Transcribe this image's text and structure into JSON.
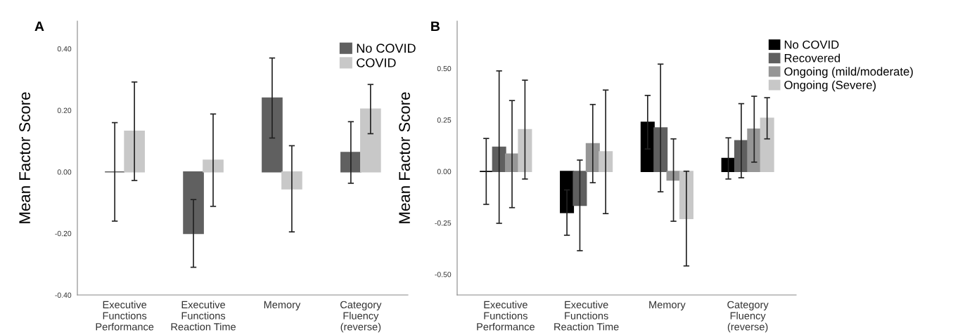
{
  "chart_data": [
    {
      "type": "bar",
      "title": "A",
      "ylabel": "Mean Factor Score",
      "categories": [
        "Executive\nFunctions\nPerformance",
        "Executive\nFunctions\nReaction Time",
        "Memory",
        "Category\nFluency\n(reverse)"
      ],
      "ylim": [
        -0.4,
        0.49
      ],
      "yticks": [
        {
          "value": -0.4,
          "label": "-0.40"
        },
        {
          "value": -0.2,
          "label": "-0.20"
        },
        {
          "value": 0,
          "label": "0.00"
        },
        {
          "value": 0.2,
          "label": "0.20"
        },
        {
          "value": 0.4,
          "label": "0.40"
        }
      ],
      "legend": "top right",
      "grid": false,
      "series": [
        {
          "name": "No COVID",
          "color": "#606060",
          "values": [
            0.0,
            -0.2,
            0.24,
            0.063
          ],
          "errors": [
            0.16,
            0.11,
            0.13,
            0.1
          ]
        },
        {
          "name": "COVID",
          "color": "#c8c8c8",
          "values": [
            0.132,
            0.038,
            -0.055,
            0.204
          ],
          "errors": [
            0.16,
            0.15,
            0.14,
            0.08
          ]
        }
      ]
    },
    {
      "type": "bar",
      "title": "B",
      "ylabel": "Mean Factor Score",
      "categories": [
        "Executive\nFunctions\nPerformance",
        "Executive\nFunctions\nReaction Time",
        "Memory",
        "Category\nFluency\n(reverse)"
      ],
      "ylim": [
        -0.6,
        0.73
      ],
      "yticks": [
        {
          "value": -0.5,
          "label": "-0.50"
        },
        {
          "value": -0.25,
          "label": "-0.25"
        },
        {
          "value": 0,
          "label": "0.00"
        },
        {
          "value": 0.25,
          "label": "0.25"
        },
        {
          "value": 0.5,
          "label": "0.50"
        }
      ],
      "legend": "top right",
      "grid": false,
      "series": [
        {
          "name": "No COVID",
          "color": "#000000",
          "values": [
            0.0,
            -0.2,
            0.239,
            0.063
          ],
          "errors": [
            0.16,
            0.11,
            0.13,
            0.1
          ]
        },
        {
          "name": "Recovered",
          "color": "#5f5f5f",
          "values": [
            0.118,
            -0.165,
            0.211,
            0.149
          ],
          "errors": [
            0.37,
            0.22,
            0.31,
            0.18
          ]
        },
        {
          "name": "Ongoing (mild/moderate)",
          "color": "#969696",
          "values": [
            0.084,
            0.135,
            -0.042,
            0.205
          ],
          "errors": [
            0.26,
            0.19,
            0.2,
            0.16
          ]
        },
        {
          "name": "Ongoing (Severe)",
          "color": "#c8c8c8",
          "values": [
            0.203,
            0.095,
            -0.229,
            0.258
          ],
          "errors": [
            0.24,
            0.3,
            0.23,
            0.1
          ]
        }
      ]
    }
  ]
}
